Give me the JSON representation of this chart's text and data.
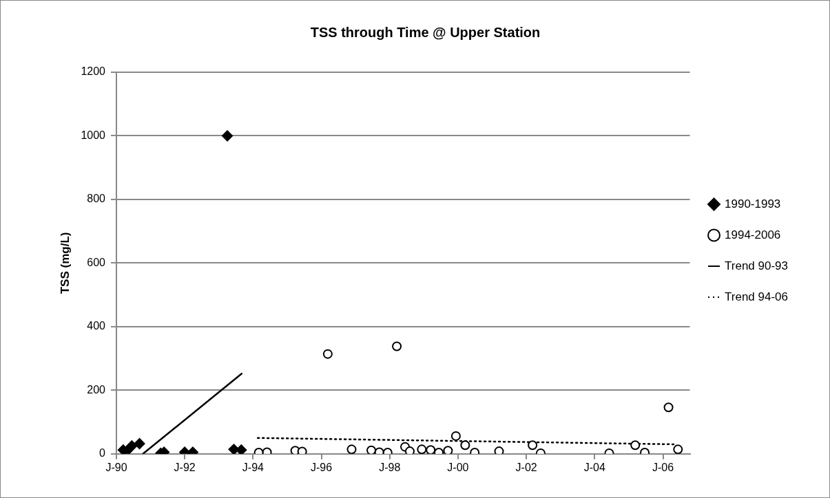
{
  "chart_data": {
    "type": "scatter",
    "title": "TSS through Time @ Upper Station",
    "ylabel": "TSS (mg/L)",
    "xlim": [
      "1990-01-01",
      "2006-10-15"
    ],
    "xticks": [
      {
        "value": "1990-01-01",
        "label": "J-90"
      },
      {
        "value": "1992-01-01",
        "label": "J-92"
      },
      {
        "value": "1994-01-01",
        "label": "J-94"
      },
      {
        "value": "1996-01-01",
        "label": "J-96"
      },
      {
        "value": "1998-01-01",
        "label": "J-98"
      },
      {
        "value": "2000-01-01",
        "label": "J-00"
      },
      {
        "value": "2002-01-01",
        "label": "J-02"
      },
      {
        "value": "2004-01-01",
        "label": "J-04"
      },
      {
        "value": "2006-01-01",
        "label": "J-06"
      }
    ],
    "ylim": [
      0,
      1200
    ],
    "yticks": [
      0,
      200,
      400,
      600,
      800,
      1000,
      1200
    ],
    "grid": "y",
    "legend": "right",
    "series": [
      {
        "name": "1990-1993",
        "type": "scatter",
        "marker": "diamond",
        "color": "#000000",
        "x": [
          "1990-03-15",
          "1990-04-20",
          "1990-06-15",
          "1990-09-05",
          "1991-04-20",
          "1991-05-25",
          "1992-01-01",
          "1992-03-28",
          "1993-04-01",
          "1993-06-10",
          "1993-08-28"
        ],
        "values": [
          12,
          8,
          25,
          32,
          2,
          5,
          5,
          5,
          1000,
          14,
          12
        ]
      },
      {
        "name": "1994-2006",
        "type": "scatter",
        "marker": "circle",
        "color": "#000000",
        "x": [
          "1994-03-03",
          "1994-05-30",
          "1995-03-28",
          "1995-06-10",
          "1996-03-10",
          "1996-11-20",
          "1997-06-18",
          "1997-09-12",
          "1997-12-10",
          "1998-03-18",
          "1998-06-14",
          "1998-08-04",
          "1998-12-10",
          "1999-03-15",
          "1999-06-10",
          "1999-09-16",
          "1999-12-10",
          "2000-03-18",
          "2000-06-28",
          "2001-03-15",
          "2002-03-08",
          "2002-06-03",
          "2004-06-05",
          "2005-03-10",
          "2005-06-20",
          "2006-03-01",
          "2006-06-10"
        ],
        "values": [
          4,
          5,
          10,
          7,
          314,
          14,
          11,
          5,
          4,
          338,
          22,
          8,
          14,
          12,
          4,
          10,
          56,
          27,
          4,
          8,
          27,
          2,
          2,
          27,
          4,
          146,
          14
        ]
      },
      {
        "name": "Trend 90-93",
        "type": "line",
        "marker": "none",
        "line_style": "solid",
        "color": "#000000",
        "x": [
          "1990-10-12",
          "1993-09-01"
        ],
        "values": [
          0,
          252
        ]
      },
      {
        "name": "Trend 94-06",
        "type": "line",
        "marker": "none",
        "line_style": "dotted",
        "color": "#000000",
        "x": [
          "1994-02-20",
          "2006-04-25"
        ],
        "values": [
          50,
          30
        ]
      }
    ]
  }
}
